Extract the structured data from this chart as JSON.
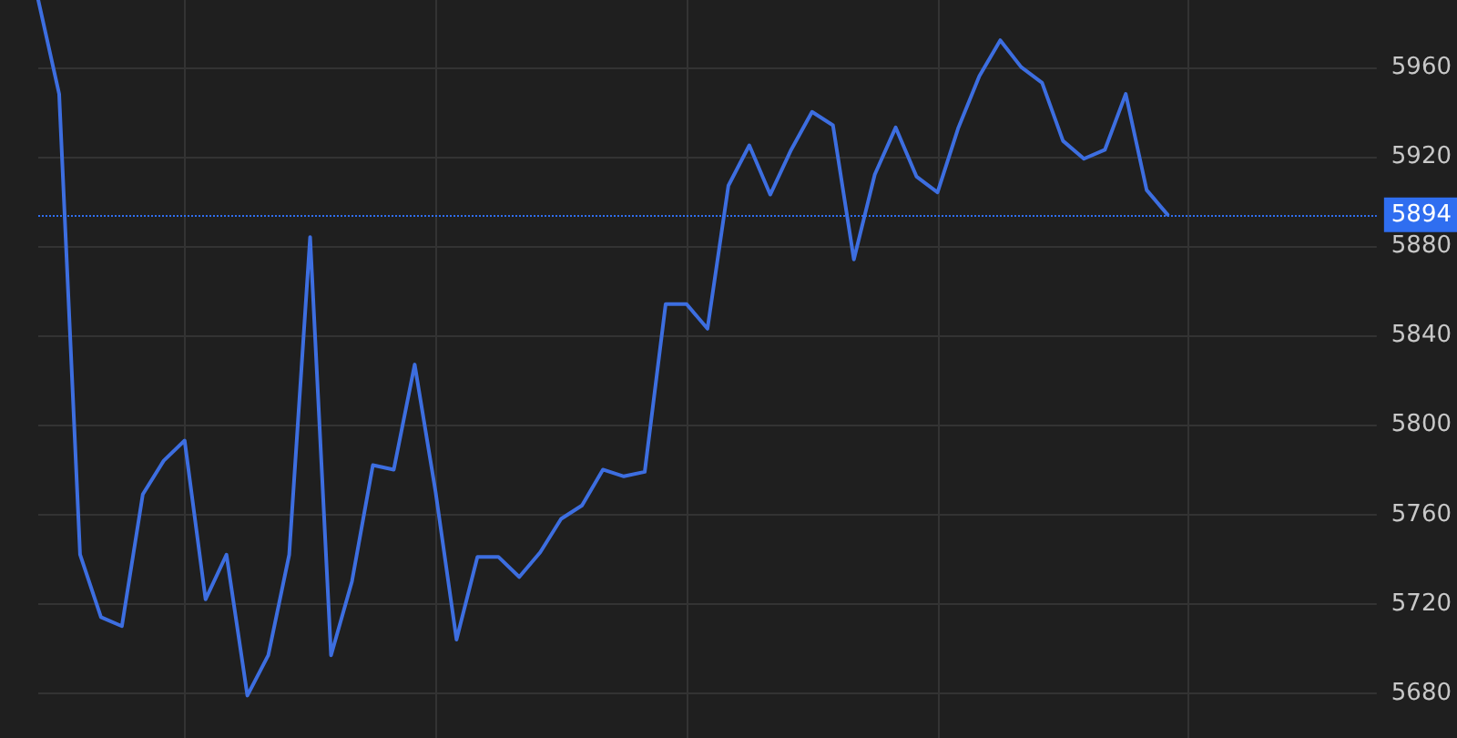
{
  "chart_data": {
    "type": "line",
    "categories": [
      null,
      null,
      null,
      null,
      null,
      null,
      null,
      null,
      null,
      null,
      null,
      null,
      null,
      null,
      null,
      null,
      null,
      null,
      null,
      null,
      null,
      null,
      null,
      null,
      null,
      null,
      null,
      null,
      null,
      null,
      null,
      null,
      null,
      null,
      null,
      null,
      null,
      null,
      null,
      null,
      null,
      null,
      null,
      null,
      null,
      null,
      null,
      null,
      null,
      null,
      null,
      null,
      null,
      null,
      null,
      null,
      null,
      null,
      null,
      null,
      null,
      null,
      null,
      null,
      null
    ],
    "series": [
      {
        "color": "#3d6ee0",
        "values": [
          5990,
          5948,
          5742,
          5714,
          5710,
          5769,
          5784,
          5793,
          5722,
          5742,
          5679,
          5697,
          5742,
          5884,
          5697,
          5730,
          5782,
          5780,
          5827,
          5770,
          5704,
          5741,
          5741,
          5732,
          5743,
          5758,
          5764,
          5780,
          5777,
          5779,
          5854,
          5854,
          5843,
          5907,
          5925,
          5903,
          5923,
          5940,
          5934,
          5874,
          5912,
          5933,
          5911,
          5904,
          5933,
          5956,
          5972,
          5960,
          5953,
          5927,
          5919,
          5923,
          5948,
          5905,
          5894,
          null,
          null,
          null,
          null,
          null,
          null,
          null,
          null,
          null,
          null
        ]
      }
    ],
    "ylim": [
      5660,
      5990
    ],
    "yticks": [
      5680,
      5720,
      5760,
      5800,
      5840,
      5880,
      5920,
      5960
    ],
    "ref_lines": [
      {
        "axis": "y",
        "value": 5894,
        "label": "5894",
        "color": "#2f6ef0",
        "line_style": "dotted"
      }
    ],
    "grid": true,
    "marker": "none",
    "line_style": "solid"
  }
}
